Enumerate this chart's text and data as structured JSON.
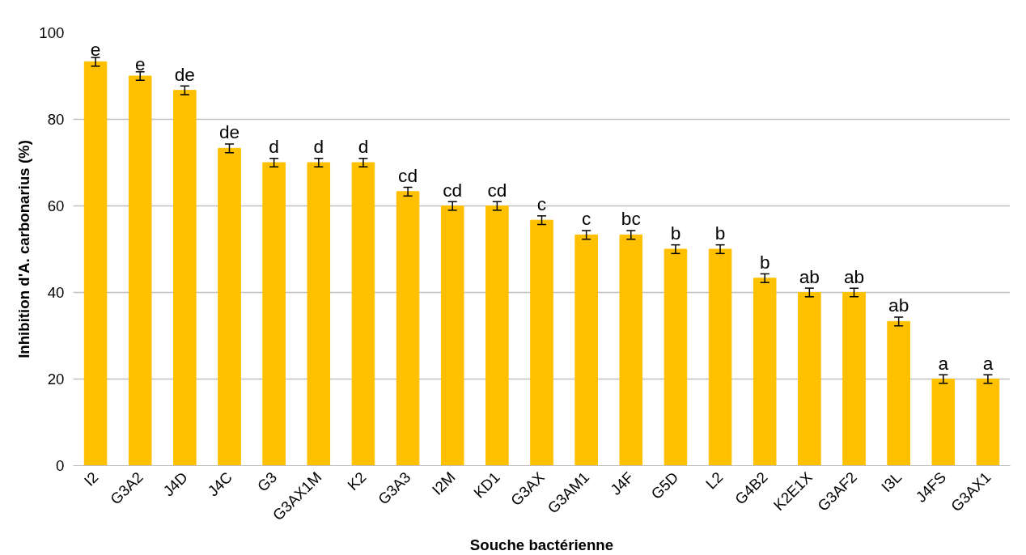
{
  "chart_data": {
    "type": "bar",
    "xlabel": "Souche bactérienne",
    "ylabel": "Inhibition d'A. carbonarius (%)",
    "categories": [
      "I2",
      "G3A2",
      "J4D",
      "J4C",
      "G3",
      "G3AX1M",
      "K2",
      "G3A3",
      "I2M",
      "KD1",
      "G3AX",
      "G3AM1",
      "J4F",
      "G5D",
      "L2",
      "G4B2",
      "K2E1X",
      "G3AF2",
      "I3L",
      "J4FS",
      "G3AX1"
    ],
    "values": [
      93.3,
      90,
      86.7,
      73.3,
      70,
      70,
      70,
      63.3,
      60,
      60,
      56.7,
      53.3,
      53.3,
      50,
      50,
      43.3,
      40,
      40,
      33.3,
      20,
      20
    ],
    "errors": [
      1,
      1,
      1,
      1,
      1,
      1,
      1,
      1,
      1,
      1,
      1,
      1,
      1,
      1,
      1,
      1,
      1,
      1,
      1,
      1,
      1
    ],
    "value_labels": [
      "e",
      "e",
      "de",
      "de",
      "d",
      "d",
      "d",
      "cd",
      "cd",
      "cd",
      "c",
      "c",
      "bc",
      "b",
      "b",
      "b",
      "ab",
      "ab",
      "ab",
      "a",
      "a"
    ],
    "color": "#ffc000",
    "ylim": [
      0,
      100
    ],
    "yticks": [
      0,
      20,
      40,
      60,
      80,
      100
    ],
    "grid": "y"
  }
}
